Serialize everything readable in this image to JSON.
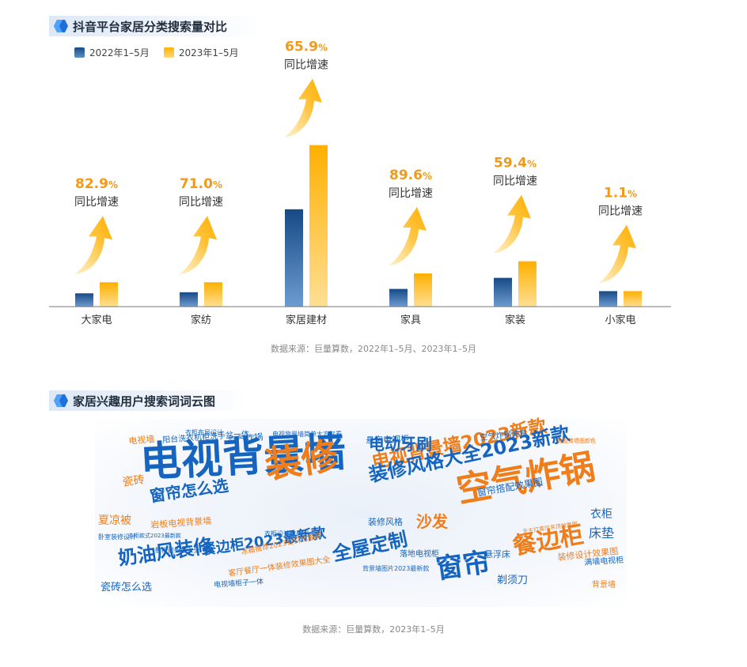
{
  "section1": {
    "title": "抖音平台家居分类搜索量对比"
  },
  "section2": {
    "title": "家居兴趣用户搜索词词云图"
  },
  "colors": {
    "series_2022": "#1e5a96",
    "series_2023": "#ffb300",
    "growth": "#f29a17",
    "blue_word": "#1565c0",
    "orange_word": "#ef7d1a"
  },
  "chart_data": {
    "type": "bar",
    "categories": [
      "大家电",
      "家纺",
      "家居建材",
      "家具",
      "家装",
      "小家电"
    ],
    "series": [
      {
        "name": "2022年1–5月",
        "values": [
          6,
          6.5,
          44,
          8,
          13,
          7
        ]
      },
      {
        "name": "2023年1–5月",
        "values": [
          11,
          11,
          73,
          15,
          20.5,
          7
        ]
      }
    ],
    "growth": [
      "82.9",
      "71.0",
      "65.9",
      "89.6",
      "59.4",
      "1.1"
    ],
    "growth_unit": "%",
    "growth_label": "同比增速"
  },
  "source1": "数据来源：巨量算数，2022年1–5月、2023年1–5月",
  "source2": "数据来源：巨量算数，2023年1–5月",
  "wordcloud": [
    {
      "text": "电视背景墙",
      "color": "blue"
    },
    {
      "text": "装修",
      "color": "orange"
    },
    {
      "text": "空气炸锅",
      "color": "orange"
    },
    {
      "text": "电视背景墙2023新款",
      "color": "orange"
    },
    {
      "text": "装修风格大全2023新款",
      "color": "blue"
    },
    {
      "text": "电动牙刷",
      "color": "blue"
    },
    {
      "text": "窗帘怎么选",
      "color": "blue"
    },
    {
      "text": "全屋定制",
      "color": "blue"
    },
    {
      "text": "窗帘",
      "color": "blue"
    },
    {
      "text": "餐边柜",
      "color": "orange"
    },
    {
      "text": "奶油风装修",
      "color": "blue"
    },
    {
      "text": "沙发",
      "color": "orange"
    },
    {
      "text": "餐边柜2023最新款",
      "color": "blue"
    },
    {
      "text": "瓷砖",
      "color": "orange"
    },
    {
      "text": "夏凉被",
      "color": "orange"
    },
    {
      "text": "电视墙",
      "color": "orange"
    },
    {
      "text": "阳台洗衣机柜洗手盆一体",
      "color": "blue"
    },
    {
      "text": "空气炸锅",
      "color": "blue"
    },
    {
      "text": "岩板电视背景墙",
      "color": "orange"
    },
    {
      "text": "悬空电视柜",
      "color": "blue"
    },
    {
      "text": "装修风格",
      "color": "blue"
    },
    {
      "text": "窗帘搭配效果图",
      "color": "blue"
    },
    {
      "text": "衣柜",
      "color": "blue"
    },
    {
      "text": "床垫",
      "color": "blue"
    },
    {
      "text": "悬浮床",
      "color": "blue"
    },
    {
      "text": "剃须刀",
      "color": "blue"
    },
    {
      "text": "瓷砖怎么选",
      "color": "blue"
    },
    {
      "text": "客厅餐厅一体装修效果图大全",
      "color": "orange"
    },
    {
      "text": "装修设计效果图",
      "color": "orange"
    },
    {
      "text": "满墙电视柜",
      "color": "blue"
    },
    {
      "text": "背景墙",
      "color": "orange"
    },
    {
      "text": "落地电视柜",
      "color": "blue"
    },
    {
      "text": "空气炸锅美食",
      "color": "blue"
    },
    {
      "text": "电视墙柜子一体",
      "color": "blue"
    },
    {
      "text": "鞋柜最新款大全",
      "color": "blue"
    },
    {
      "text": "卧室装修设计",
      "color": "blue"
    },
    {
      "text": "衣柜设计效果图大全",
      "color": "blue"
    },
    {
      "text": "背景墙图片2023最新款",
      "color": "blue"
    },
    {
      "text": "衣柜布局设计",
      "color": "blue"
    },
    {
      "text": "冰箱推荐2023性价比最高",
      "color": "orange"
    },
    {
      "text": "衣柜款式2023最新款",
      "color": "blue"
    },
    {
      "text": "电视背景墙简单大方好看",
      "color": "blue"
    },
    {
      "text": "无主灯客厅吊顶效果图",
      "color": "orange"
    },
    {
      "text": "乳胶漆墙面颜色",
      "color": "orange"
    }
  ]
}
